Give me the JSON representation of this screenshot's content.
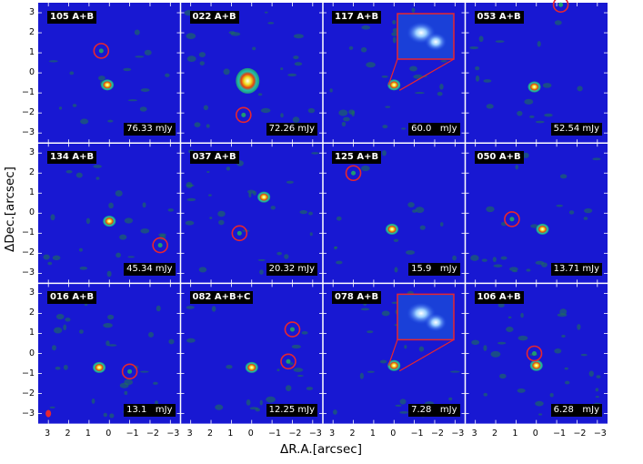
{
  "figure": {
    "xlabel": "ΔR.A.[arcsec]",
    "ylabel": "ΔDec.[arcsec]",
    "x_ticks": [
      "3",
      "2",
      "1",
      "0",
      "−1",
      "−2",
      "−3"
    ],
    "y_ticks": [
      "3",
      "2",
      "1",
      "0",
      "−1",
      "−2",
      "−3"
    ],
    "colors": {
      "background": "#1818d2",
      "noise": "#1f7a4a",
      "circle": "#e8262e",
      "source_core": "#fffff0"
    }
  },
  "panels": [
    {
      "label": "105 A+B",
      "flux": "76.33 mJy"
    },
    {
      "label": "022 A+B",
      "flux": "72.26 mJy"
    },
    {
      "label": "117 A+B",
      "flux": "60.0   mJy",
      "inset": true
    },
    {
      "label": "053 A+B",
      "flux": "52.54 mJy"
    },
    {
      "label": "134 A+B",
      "flux": "45.34 mJy"
    },
    {
      "label": "037 A+B",
      "flux": "20.32 mJy"
    },
    {
      "label": "125 A+B",
      "flux": "15.9   mJy"
    },
    {
      "label": "050 A+B",
      "flux": "13.71 mJy"
    },
    {
      "label": "016 A+B",
      "flux": "13.1   mJy",
      "beam": true
    },
    {
      "label": "082 A+B+C",
      "flux": "12.25 mJy"
    },
    {
      "label": "078 A+B",
      "flux": "7.28   mJy",
      "inset": true
    },
    {
      "label": "106 A+B",
      "flux": "6.28   mJy"
    }
  ],
  "chart_data": {
    "type": "heatmap",
    "xlabel": "ΔR.A.[arcsec]",
    "ylabel": "ΔDec.[arcsec]",
    "xlim": [
      3.5,
      -3.5
    ],
    "ylim": [
      -3.5,
      3.5
    ],
    "panels": [
      {
        "label": "105 A+B",
        "flux_mJy": 76.33,
        "sources": [
          [
            0.1,
            -0.6
          ]
        ],
        "circles": [
          [
            0.4,
            1.1
          ]
        ]
      },
      {
        "label": "022 A+B",
        "flux_mJy": 72.26,
        "sources": [
          [
            0.2,
            -0.4
          ]
        ],
        "circles": [
          [
            0.4,
            -2.1
          ]
        ]
      },
      {
        "label": "117 A+B",
        "flux_mJy": 60.0,
        "sources": [
          [
            0.0,
            -0.6
          ]
        ],
        "circles": []
      },
      {
        "label": "053 A+B",
        "flux_mJy": 52.54,
        "sources": [
          [
            0.1,
            -0.7
          ]
        ],
        "circles": [
          [
            -1.2,
            3.4
          ]
        ]
      },
      {
        "label": "134 A+B",
        "flux_mJy": 45.34,
        "sources": [
          [
            0.0,
            -0.4
          ]
        ],
        "circles": [
          [
            -2.5,
            -1.6
          ]
        ]
      },
      {
        "label": "037 A+B",
        "flux_mJy": 20.32,
        "sources": [
          [
            -0.6,
            0.8
          ]
        ],
        "circles": [
          [
            0.6,
            -1.0
          ]
        ]
      },
      {
        "label": "125 A+B",
        "flux_mJy": 15.9,
        "sources": [
          [
            0.1,
            -0.8
          ]
        ],
        "circles": [
          [
            2.0,
            2.0
          ]
        ]
      },
      {
        "label": "050 A+B",
        "flux_mJy": 13.71,
        "sources": [
          [
            -0.3,
            -0.8
          ]
        ],
        "circles": [
          [
            1.2,
            -0.3
          ]
        ]
      },
      {
        "label": "016 A+B",
        "flux_mJy": 13.1,
        "sources": [
          [
            0.5,
            -0.7
          ]
        ],
        "circles": [
          [
            -1.0,
            -0.9
          ]
        ]
      },
      {
        "label": "082 A+B+C",
        "flux_mJy": 12.25,
        "sources": [
          [
            0.0,
            -0.7
          ]
        ],
        "circles": [
          [
            -2.0,
            1.2
          ],
          [
            -1.8,
            -0.4
          ]
        ]
      },
      {
        "label": "078 A+B",
        "flux_mJy": 7.28,
        "sources": [
          [
            0.0,
            -0.6
          ]
        ],
        "circles": []
      },
      {
        "label": "106 A+B",
        "flux_mJy": 6.28,
        "sources": [
          [
            0.0,
            -0.6
          ]
        ],
        "circles": [
          [
            0.1,
            0.0
          ]
        ]
      }
    ]
  }
}
